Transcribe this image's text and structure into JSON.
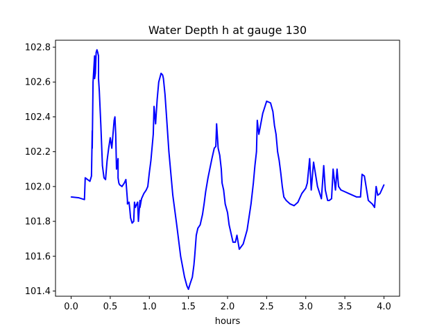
{
  "chart_data": {
    "type": "line",
    "title": "Water Depth h at gauge 130",
    "xlabel": "hours",
    "ylabel": "",
    "xlim": [
      -0.2,
      4.2
    ],
    "ylim": [
      101.37,
      102.84
    ],
    "xticks": [
      0.0,
      0.5,
      1.0,
      1.5,
      2.0,
      2.5,
      3.0,
      3.5,
      4.0
    ],
    "xtick_labels": [
      "0.0",
      "0.5",
      "1.0",
      "1.5",
      "2.0",
      "2.5",
      "3.0",
      "3.5",
      "4.0"
    ],
    "yticks": [
      101.4,
      101.6,
      101.8,
      102.0,
      102.2,
      102.4,
      102.6,
      102.8
    ],
    "ytick_labels": [
      "101.4",
      "101.6",
      "101.8",
      "102.0",
      "102.2",
      "102.4",
      "102.6",
      "102.8"
    ],
    "grid": false,
    "series": [
      {
        "color": "#0000ff",
        "x": [
          0.0,
          0.1,
          0.17,
          0.18,
          0.18,
          0.24,
          0.26,
          0.27,
          0.27,
          0.28,
          0.3,
          0.3,
          0.31,
          0.32,
          0.33,
          0.34,
          0.35,
          0.35,
          0.36,
          0.38,
          0.4,
          0.42,
          0.44,
          0.46,
          0.48,
          0.5,
          0.52,
          0.55,
          0.56,
          0.57,
          0.58,
          0.6,
          0.6,
          0.61,
          0.62,
          0.65,
          0.68,
          0.7,
          0.72,
          0.72,
          0.74,
          0.75,
          0.76,
          0.78,
          0.8,
          0.81,
          0.82,
          0.85,
          0.86,
          0.88,
          0.88,
          0.9,
          0.93,
          0.96,
          0.98,
          1.0,
          1.02,
          1.05,
          1.06,
          1.08,
          1.1,
          1.12,
          1.15,
          1.17,
          1.18,
          1.2,
          1.22,
          1.25,
          1.3,
          1.35,
          1.4,
          1.45,
          1.48,
          1.5,
          1.52,
          1.55,
          1.57,
          1.58,
          1.6,
          1.62,
          1.65,
          1.68,
          1.7,
          1.72,
          1.75,
          1.8,
          1.83,
          1.85,
          1.86,
          1.88,
          1.9,
          1.92,
          1.93,
          1.95,
          1.97,
          2.0,
          2.02,
          2.05,
          2.07,
          2.1,
          2.12,
          2.15,
          2.2,
          2.25,
          2.3,
          2.33,
          2.35,
          2.37,
          2.38,
          2.4,
          2.45,
          2.5,
          2.55,
          2.58,
          2.6,
          2.62,
          2.64,
          2.66,
          2.68,
          2.7,
          2.72,
          2.75,
          2.8,
          2.85,
          2.9,
          2.95,
          3.0,
          3.02,
          3.05,
          3.07,
          3.1,
          3.15,
          3.2,
          3.23,
          3.25,
          3.28,
          3.3,
          3.33,
          3.35,
          3.38,
          3.4,
          3.42,
          3.45,
          3.5,
          3.55,
          3.6,
          3.65,
          3.7,
          3.72,
          3.75,
          3.8,
          3.85,
          3.88,
          3.9,
          3.92,
          3.95,
          3.97,
          4.0
        ],
        "y": [
          101.94,
          101.935,
          101.925,
          102.05,
          102.05,
          102.03,
          102.06,
          102.32,
          102.22,
          102.6,
          102.75,
          102.62,
          102.65,
          102.77,
          102.785,
          102.77,
          102.75,
          102.62,
          102.55,
          102.35,
          102.12,
          102.05,
          102.04,
          102.15,
          102.22,
          102.28,
          102.22,
          102.38,
          102.4,
          102.3,
          102.1,
          102.16,
          102.05,
          102.02,
          102.01,
          102.0,
          102.02,
          102.04,
          101.92,
          101.9,
          101.91,
          101.87,
          101.82,
          101.79,
          101.8,
          101.91,
          101.88,
          101.91,
          101.8,
          101.92,
          101.88,
          101.93,
          101.96,
          101.98,
          102.0,
          102.08,
          102.15,
          102.3,
          102.46,
          102.36,
          102.5,
          102.6,
          102.65,
          102.64,
          102.62,
          102.53,
          102.4,
          102.2,
          101.95,
          101.78,
          101.6,
          101.48,
          101.43,
          101.41,
          101.44,
          101.48,
          101.55,
          101.6,
          101.72,
          101.76,
          101.78,
          101.84,
          101.9,
          101.97,
          102.05,
          102.16,
          102.22,
          102.23,
          102.36,
          102.22,
          102.18,
          102.1,
          102.02,
          101.98,
          101.9,
          101.85,
          101.78,
          101.72,
          101.68,
          101.68,
          101.72,
          101.64,
          101.67,
          101.75,
          101.9,
          102.02,
          102.12,
          102.2,
          102.38,
          102.3,
          102.42,
          102.49,
          102.48,
          102.43,
          102.35,
          102.3,
          102.2,
          102.15,
          102.08,
          102.0,
          101.94,
          101.92,
          101.9,
          101.89,
          101.91,
          101.96,
          101.99,
          102.02,
          102.16,
          101.98,
          102.14,
          102.0,
          101.93,
          102.12,
          101.98,
          101.92,
          101.92,
          101.93,
          102.1,
          101.98,
          102.1,
          102.0,
          101.98,
          101.97,
          101.96,
          101.95,
          101.94,
          101.94,
          102.07,
          102.06,
          101.92,
          101.9,
          101.88,
          102.0,
          101.95,
          101.96,
          101.98,
          102.01
        ]
      }
    ]
  }
}
